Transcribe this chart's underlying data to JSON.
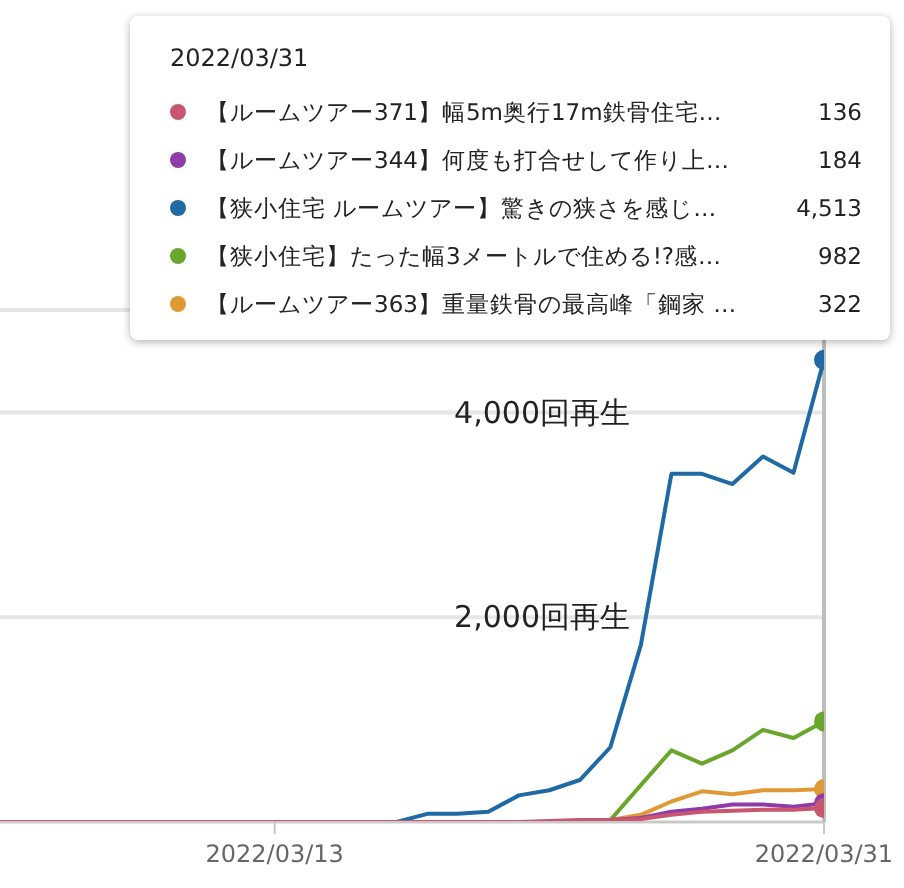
{
  "chart_data": {
    "type": "line",
    "x": [
      "2022-03-04",
      "2022-03-05",
      "2022-03-06",
      "2022-03-07",
      "2022-03-08",
      "2022-03-09",
      "2022-03-10",
      "2022-03-11",
      "2022-03-12",
      "2022-03-13",
      "2022-03-14",
      "2022-03-15",
      "2022-03-16",
      "2022-03-17",
      "2022-03-18",
      "2022-03-19",
      "2022-03-20",
      "2022-03-21",
      "2022-03-22",
      "2022-03-23",
      "2022-03-24",
      "2022-03-25",
      "2022-03-26",
      "2022-03-27",
      "2022-03-28",
      "2022-03-29",
      "2022-03-30",
      "2022-03-31"
    ],
    "xlim": [
      "2022-03-04",
      "2022-03-31"
    ],
    "xticks": [
      {
        "value": "2022-03-13",
        "label": "2022/03/13"
      },
      {
        "value": "2022-03-31",
        "label": "2022/03/31"
      }
    ],
    "ylim": [
      0,
      5000
    ],
    "yticks": [
      {
        "value": 0,
        "label": null
      },
      {
        "value": 2000,
        "label": "2,000回再生"
      },
      {
        "value": 4000,
        "label": "4,000回再生"
      }
    ],
    "grid": "y",
    "legend": "top",
    "legend_title": "2022/03/31",
    "annotations": [
      "136",
      "184",
      "4,513",
      "982",
      "322"
    ],
    "ref_lines": [
      {
        "axis": "x",
        "value": "2022-03-31",
        "label": null,
        "color": "#bdbdbd"
      }
    ],
    "series": [
      {
        "name": "【ルームツアー371】幅5m奥行17m鉄骨住宅…",
        "color": "#c9566f",
        "values": [
          0,
          0,
          0,
          0,
          0,
          0,
          0,
          0,
          0,
          0,
          0,
          0,
          0,
          0,
          0,
          0,
          0,
          0,
          10,
          20,
          20,
          30,
          70,
          100,
          110,
          120,
          120,
          136
        ]
      },
      {
        "name": "【ルームツアー344】何度も打合せして作り上…",
        "color": "#8e3aa8",
        "values": [
          null,
          null,
          null,
          null,
          null,
          null,
          null,
          null,
          null,
          null,
          null,
          null,
          null,
          null,
          null,
          null,
          null,
          null,
          null,
          null,
          20,
          40,
          100,
          130,
          170,
          170,
          150,
          184
        ]
      },
      {
        "name": "【狭小住宅 ルームツアー】驚きの狭さを感じ…",
        "color": "#1f6aa5",
        "values": [
          null,
          null,
          null,
          null,
          null,
          null,
          null,
          null,
          null,
          null,
          null,
          null,
          null,
          0,
          80,
          80,
          100,
          260,
          310,
          410,
          730,
          1730,
          3400,
          3400,
          3300,
          3570,
          3410,
          4513
        ]
      },
      {
        "name": "【狭小住宅】たった幅3メートルで住める!?感…",
        "color": "#6aa62b",
        "values": [
          null,
          null,
          null,
          null,
          null,
          null,
          null,
          null,
          null,
          null,
          null,
          null,
          null,
          null,
          null,
          null,
          null,
          null,
          null,
          null,
          20,
          360,
          700,
          570,
          700,
          900,
          820,
          982
        ]
      },
      {
        "name": "【ルームツアー363】重量鉄骨の最高峰「鋼家 …",
        "color": "#e09a35",
        "values": [
          null,
          null,
          null,
          null,
          null,
          null,
          null,
          null,
          null,
          null,
          null,
          null,
          null,
          null,
          null,
          null,
          null,
          null,
          null,
          null,
          20,
          70,
          200,
          300,
          270,
          310,
          310,
          322
        ]
      }
    ]
  }
}
